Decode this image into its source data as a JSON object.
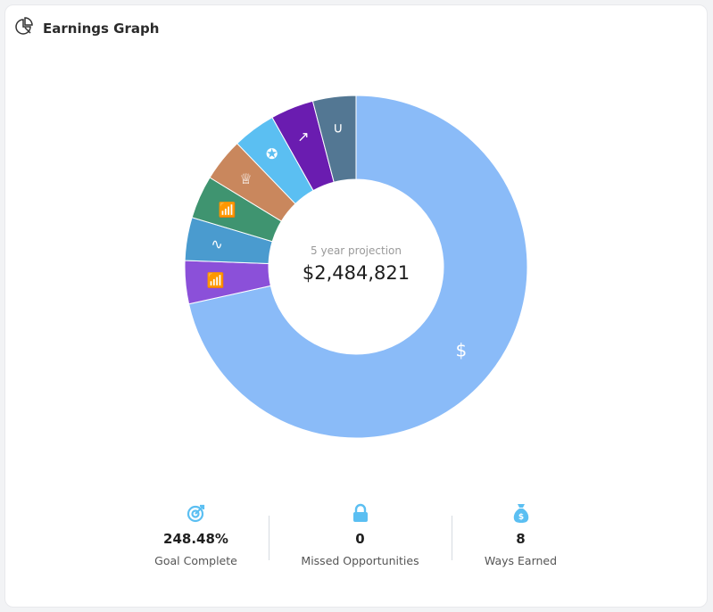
{
  "header": {
    "title": "Earnings Graph",
    "icon": "pie-chart-icon"
  },
  "center": {
    "subtitle": "5 year projection",
    "total": "$2,484,821"
  },
  "chart_data": {
    "type": "pie",
    "donut": true,
    "unit": "percent of total (estimated)",
    "slices": [
      {
        "icon": "dollar",
        "value": 71.5,
        "color": "#8abbf8",
        "label": "$"
      },
      {
        "icon": "chart-bars",
        "value": 4.07,
        "color": "#8b50d9"
      },
      {
        "icon": "pulse",
        "value": 4.07,
        "color": "#4a9bcf"
      },
      {
        "icon": "chart-bars",
        "value": 4.07,
        "color": "#3f9470"
      },
      {
        "icon": "crown",
        "value": 4.07,
        "color": "#c9875d"
      },
      {
        "icon": "award",
        "value": 4.07,
        "color": "#5bbff2"
      },
      {
        "icon": "trend-up",
        "value": 4.07,
        "color": "#6a1cb0"
      },
      {
        "icon": "magnet",
        "value": 4.07,
        "color": "#537793"
      }
    ]
  },
  "stats": [
    {
      "icon": "target-icon",
      "value": "248.48%",
      "label": "Goal Complete"
    },
    {
      "icon": "lock-icon",
      "value": "0",
      "label": "Missed Opportunities"
    },
    {
      "icon": "money-bag-icon",
      "value": "8",
      "label": "Ways Earned"
    }
  ],
  "accent": "#5bbff2"
}
